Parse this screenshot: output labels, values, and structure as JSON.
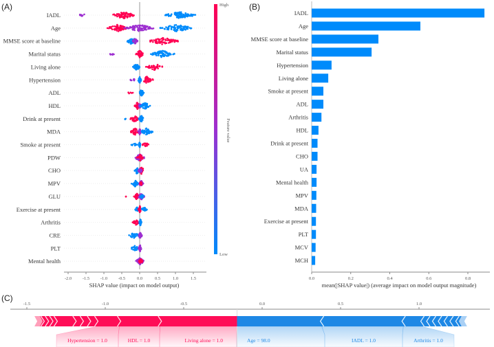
{
  "chart_data": [
    {
      "panel": "(A)",
      "type": "scatter",
      "subtype": "beeswarm",
      "xlabel": "SHAP value (impact on model output)",
      "xlim": [
        -2.1,
        1.8
      ],
      "xticks": [
        "-2.0",
        "-1.5",
        "-1.0",
        "-0.5",
        "0.0",
        "0.5",
        "1.0",
        "1.5"
      ],
      "xtick_values": [
        -2.0,
        -1.5,
        -1.0,
        -0.5,
        0.0,
        0.5,
        1.0,
        1.5
      ],
      "colorbar": {
        "label": "Feature value",
        "high": "High",
        "low": "Low",
        "high_color": "#ff0052",
        "low_color": "#008bfb",
        "mid_color": "#9d2fd0"
      },
      "features": [
        {
          "name": "IADL",
          "clusters": [
            [
              -1.9,
              -1.4,
              8,
              "p"
            ],
            [
              -0.8,
              -0.1,
              70,
              "r"
            ],
            [
              0.65,
              1.6,
              100,
              "b"
            ]
          ]
        },
        {
          "name": "Age",
          "clusters": [
            [
              -0.95,
              -0.3,
              70,
              "r"
            ],
            [
              -0.45,
              0.45,
              80,
              "p"
            ],
            [
              0.5,
              1.55,
              90,
              "b"
            ]
          ]
        },
        {
          "name": "MMSE score at baseline",
          "clusters": [
            [
              -0.38,
              -0.05,
              35,
              "b"
            ],
            [
              -0.2,
              -0.05,
              25,
              "p"
            ],
            [
              0.15,
              1.15,
              80,
              "r"
            ]
          ]
        },
        {
          "name": "Marital status",
          "clusters": [
            [
              -0.9,
              -0.65,
              6,
              "p"
            ],
            [
              -0.12,
              0.12,
              45,
              "r"
            ],
            [
              0.25,
              1.0,
              70,
              "b"
            ]
          ]
        },
        {
          "name": "Living alone",
          "clusters": [
            [
              -0.2,
              0.02,
              40,
              "b"
            ],
            [
              0.15,
              0.72,
              35,
              "r"
            ]
          ]
        },
        {
          "name": "Hypertension",
          "clusters": [
            [
              -0.32,
              -0.05,
              8,
              "p"
            ],
            [
              -0.05,
              0.05,
              30,
              "b"
            ],
            [
              0.02,
              0.4,
              40,
              "r"
            ]
          ]
        },
        {
          "name": "ADL",
          "clusters": [
            [
              -0.35,
              -0.15,
              5,
              "r"
            ],
            [
              -0.02,
              0.12,
              40,
              "b"
            ]
          ]
        },
        {
          "name": "HDL",
          "clusters": [
            [
              -0.15,
              0.02,
              35,
              "r"
            ],
            [
              -0.05,
              0.05,
              20,
              "p"
            ],
            [
              0.0,
              0.3,
              40,
              "b"
            ]
          ]
        },
        {
          "name": "Drink at present",
          "clusters": [
            [
              -0.42,
              -0.38,
              3,
              "b"
            ],
            [
              -0.28,
              0.0,
              35,
              "r"
            ],
            [
              -0.03,
              0.12,
              40,
              "b"
            ]
          ]
        },
        {
          "name": "MDA",
          "clusters": [
            [
              -0.27,
              0.02,
              35,
              "r"
            ],
            [
              -0.05,
              0.05,
              25,
              "p"
            ],
            [
              0.0,
              0.38,
              45,
              "b"
            ]
          ]
        },
        {
          "name": "Smoke at present",
          "clusters": [
            [
              -0.25,
              -0.03,
              10,
              "b"
            ],
            [
              -0.03,
              0.03,
              25,
              "b"
            ],
            [
              0.05,
              0.27,
              20,
              "r"
            ]
          ]
        },
        {
          "name": "PDW",
          "clusters": [
            [
              -0.15,
              0.15,
              60,
              "p"
            ],
            [
              -0.08,
              0.12,
              30,
              "r"
            ]
          ]
        },
        {
          "name": "CHO",
          "clusters": [
            [
              -0.15,
              0.0,
              30,
              "b"
            ],
            [
              -0.05,
              0.15,
              45,
              "r"
            ],
            [
              -0.05,
              0.08,
              20,
              "p"
            ]
          ]
        },
        {
          "name": "MPV",
          "clusters": [
            [
              -0.25,
              0.0,
              30,
              "b"
            ],
            [
              -0.03,
              0.1,
              40,
              "p"
            ],
            [
              0.0,
              0.08,
              15,
              "r"
            ]
          ]
        },
        {
          "name": "GLU",
          "clusters": [
            [
              -0.4,
              -0.38,
              2,
              "r"
            ],
            [
              -0.16,
              0.0,
              30,
              "r"
            ],
            [
              -0.05,
              0.14,
              40,
              "p"
            ],
            [
              0.0,
              0.14,
              15,
              "b"
            ]
          ]
        },
        {
          "name": "Exercise at present",
          "clusters": [
            [
              -0.15,
              0.0,
              20,
              "b"
            ],
            [
              -0.04,
              0.05,
              40,
              "r"
            ],
            [
              0.02,
              0.22,
              20,
              "b"
            ]
          ]
        },
        {
          "name": "Arthritis",
          "clusters": [
            [
              -0.2,
              0.0,
              25,
              "r"
            ],
            [
              -0.02,
              0.06,
              40,
              "b"
            ]
          ]
        },
        {
          "name": "CRE",
          "clusters": [
            [
              -0.32,
              0.0,
              30,
              "b"
            ],
            [
              -0.04,
              0.07,
              40,
              "p"
            ]
          ]
        },
        {
          "name": "PLT",
          "clusters": [
            [
              -0.27,
              0.0,
              25,
              "b"
            ],
            [
              -0.04,
              0.06,
              40,
              "p"
            ]
          ]
        },
        {
          "name": "Mental health",
          "clusters": [
            [
              -0.12,
              0.14,
              55,
              "p"
            ],
            [
              -0.05,
              0.1,
              20,
              "r"
            ]
          ]
        }
      ]
    },
    {
      "panel": "(B)",
      "type": "bar",
      "orientation": "horizontal",
      "xlabel": "mean(|SHAP value|) (average impact on model output magnitude)",
      "xlim": [
        0,
        0.92
      ],
      "xticks": [
        "0.0",
        "0.2",
        "0.4",
        "0.6",
        "0.8"
      ],
      "xtick_values": [
        0,
        0.2,
        0.4,
        0.6,
        0.8
      ],
      "color": "#008bfb",
      "categories": [
        "IADL",
        "Age",
        "MMSE score at baseline",
        "Marital status",
        "Hypertension",
        "Living alone",
        "Smoke at present",
        "ADL",
        "Arthritis",
        "HDL",
        "Drink at present",
        "CHO",
        "UA",
        "Mental health",
        "MPV",
        "MDA",
        "Exercise at present",
        "PLT",
        "MCV",
        "MCH"
      ],
      "values": [
        0.885,
        0.557,
        0.342,
        0.307,
        0.102,
        0.085,
        0.06,
        0.06,
        0.05,
        0.035,
        0.03,
        0.03,
        0.025,
        0.025,
        0.024,
        0.023,
        0.022,
        0.022,
        0.02,
        0.018
      ]
    },
    {
      "panel": "(C)",
      "type": "force",
      "xlim": [
        -1.6,
        1.35
      ],
      "xticks": [
        "-1.5",
        "-1.0",
        "-0.5",
        "0.0",
        "0.5",
        "1.0"
      ],
      "xtick_values": [
        -1.5,
        -1.0,
        -0.5,
        0.0,
        0.5,
        1.0
      ],
      "output_value": -0.16,
      "positive_color": "#ff0d57",
      "negative_color": "#1e88e5",
      "positive_features": [
        {
          "label": "Living alone = 1.0",
          "effect": 0.49
        },
        {
          "label": "HDL = 1.0",
          "effect": 0.26
        },
        {
          "label": "Hypertension = 1.0",
          "effect": 0.145
        }
      ],
      "positive_other_effect": 0.37,
      "negative_features": [
        {
          "label": "Age = 98.0",
          "effect": 0.54
        },
        {
          "label": "IADL = 1.0",
          "effect": 0.52
        },
        {
          "label": "Arthritis = 1.0",
          "effect": 0.12
        }
      ],
      "negative_other_effect": 0.26
    }
  ]
}
